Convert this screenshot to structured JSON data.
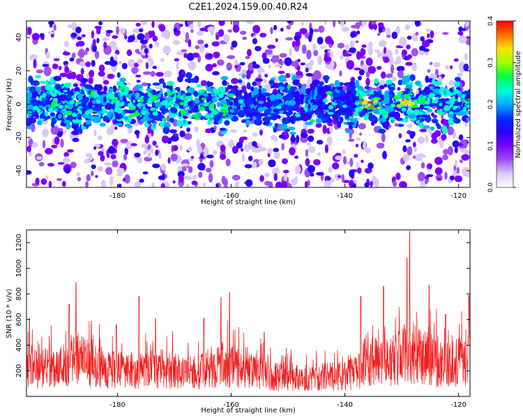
{
  "title": "C2E1.2024.159.00.40.R24",
  "colors": {
    "snr_line": "#ee2222",
    "colormap": [
      "#ffffff",
      "#d8c8f4",
      "#9f50f0",
      "#7a00ff",
      "#2a00ff",
      "#0030ff",
      "#00b0ff",
      "#00ffd0",
      "#00ff40",
      "#a0ff00",
      "#ffe000",
      "#ff7000",
      "#ff0000"
    ]
  },
  "chart_data": [
    {
      "type": "heatmap",
      "title": "",
      "xlabel": "Height of straight line (km)",
      "ylabel": "Frequency (Hz)",
      "xlim": [
        -196,
        -118
      ],
      "ylim": [
        -50,
        50
      ],
      "xticks": [
        "-180",
        "-160",
        "-140",
        "-120"
      ],
      "yticks": [
        "-40",
        "-20",
        "0",
        "20",
        "40"
      ],
      "colorbar": {
        "label": "Normalized spectral amplitude",
        "range": [
          0.0,
          0.4
        ],
        "ticks": [
          "0.0",
          "0.1",
          "0.2",
          "0.3",
          "0.4"
        ]
      },
      "band_center_hz": 0,
      "band_halfwidth_hz": 12,
      "strong_regions_km": [
        [
          -194,
          -168
        ],
        [
          -166,
          -160
        ],
        [
          -138,
          -118
        ]
      ],
      "peak_regions_km": [
        [
          -137,
          -134
        ],
        [
          -131,
          -128
        ]
      ]
    },
    {
      "type": "line",
      "title": "",
      "xlabel": "Height of straight line (km)",
      "ylabel": "SNR (10 * v/v)",
      "xlim": [
        -196,
        -118
      ],
      "ylim": [
        0,
        1300
      ],
      "xticks": [
        "-180",
        "-160",
        "-140",
        "-120"
      ],
      "yticks": [
        "200",
        "400",
        "600",
        "800",
        "1000",
        "1200"
      ],
      "baseline": [
        {
          "x": -196,
          "y": 230
        },
        {
          "x": -190,
          "y": 260
        },
        {
          "x": -187,
          "y": 330
        },
        {
          "x": -184,
          "y": 260
        },
        {
          "x": -178,
          "y": 210
        },
        {
          "x": -172,
          "y": 240
        },
        {
          "x": -166,
          "y": 200
        },
        {
          "x": -162,
          "y": 280
        },
        {
          "x": -158,
          "y": 230
        },
        {
          "x": -152,
          "y": 170
        },
        {
          "x": -146,
          "y": 160
        },
        {
          "x": -141,
          "y": 180
        },
        {
          "x": -138,
          "y": 200
        },
        {
          "x": -136,
          "y": 330
        },
        {
          "x": -132,
          "y": 300
        },
        {
          "x": -129,
          "y": 380
        },
        {
          "x": -126,
          "y": 330
        },
        {
          "x": -122,
          "y": 280
        },
        {
          "x": -118,
          "y": 310
        }
      ],
      "peaks": [
        {
          "x": -195.5,
          "y": 610
        },
        {
          "x": -188.5,
          "y": 720
        },
        {
          "x": -187.3,
          "y": 890
        },
        {
          "x": -180.2,
          "y": 560
        },
        {
          "x": -176.2,
          "y": 780
        },
        {
          "x": -173.3,
          "y": 610
        },
        {
          "x": -164.8,
          "y": 610
        },
        {
          "x": -161.8,
          "y": 770
        },
        {
          "x": -160.3,
          "y": 810
        },
        {
          "x": -154.2,
          "y": 500
        },
        {
          "x": -137.2,
          "y": 780
        },
        {
          "x": -133.2,
          "y": 860
        },
        {
          "x": -129.1,
          "y": 1080
        },
        {
          "x": -128.6,
          "y": 1290
        },
        {
          "x": -125.2,
          "y": 870
        },
        {
          "x": -122.3,
          "y": 640
        },
        {
          "x": -118.2,
          "y": 790
        }
      ]
    }
  ]
}
